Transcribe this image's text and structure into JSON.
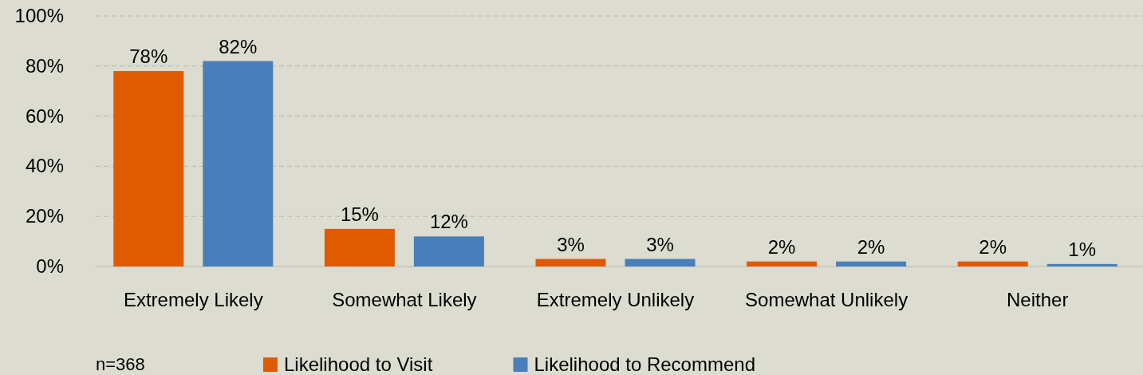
{
  "chart_data": {
    "type": "bar",
    "categories": [
      "Extremely Likely",
      "Somewhat Likely",
      "Extremely Unlikely",
      "Somewhat Unlikely",
      "Neither"
    ],
    "series": [
      {
        "name": "Likelihood to Visit",
        "color": "#e05a00",
        "values": [
          78,
          15,
          3,
          2,
          2
        ],
        "value_labels": [
          "78%",
          "15%",
          "3%",
          "2%",
          "2%"
        ]
      },
      {
        "name": "Likelihood to Recommend",
        "color": "#4a7ebb",
        "values": [
          82,
          12,
          3,
          2,
          1
        ],
        "value_labels": [
          "82%",
          "12%",
          "3%",
          "2%",
          "1%"
        ]
      }
    ],
    "ylim": [
      0,
      100
    ],
    "yticks": [
      {
        "value": 0,
        "label": "0%"
      },
      {
        "value": 20,
        "label": "20%"
      },
      {
        "value": 40,
        "label": "40%"
      },
      {
        "value": 60,
        "label": "60%"
      },
      {
        "value": 80,
        "label": "80%"
      },
      {
        "value": 100,
        "label": "100%"
      }
    ],
    "grid": "y",
    "legend": "bottom",
    "annotations": [
      "n=368"
    ]
  }
}
